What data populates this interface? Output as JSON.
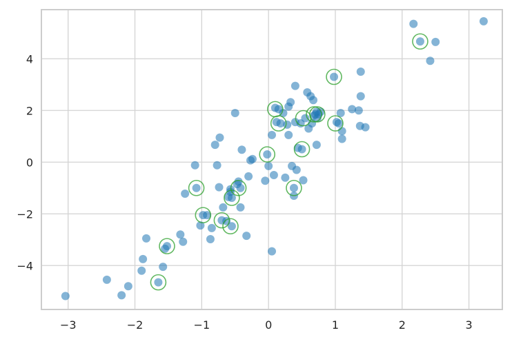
{
  "chart_data": {
    "type": "scatter",
    "title": "",
    "xlabel": "",
    "ylabel": "",
    "xlim": [
      -3.4,
      3.5
    ],
    "ylim": [
      -5.7,
      5.9
    ],
    "xticks": [
      -3,
      -2,
      -1,
      0,
      1,
      2,
      3
    ],
    "yticks": [
      -4,
      -2,
      0,
      2,
      4
    ],
    "grid": true,
    "legend": "none",
    "colors": {
      "points": "#1f77b4",
      "highlight": "#2ca02c"
    },
    "series": [
      {
        "role": "points",
        "points": [
          [
            -3.04,
            -5.18
          ],
          [
            -2.42,
            -4.55
          ],
          [
            -2.2,
            -5.15
          ],
          [
            -2.1,
            -4.8
          ],
          [
            -1.9,
            -4.2
          ],
          [
            -1.88,
            -3.75
          ],
          [
            -1.83,
            -2.95
          ],
          [
            -1.65,
            -4.65
          ],
          [
            -1.58,
            -4.05
          ],
          [
            -1.55,
            -3.35
          ],
          [
            -1.52,
            -3.25
          ],
          [
            -1.32,
            -2.8
          ],
          [
            -1.28,
            -3.08
          ],
          [
            -1.25,
            -1.22
          ],
          [
            -1.1,
            -0.12
          ],
          [
            -1.08,
            -1.0
          ],
          [
            -1.02,
            -2.45
          ],
          [
            -0.98,
            -2.05
          ],
          [
            -0.92,
            -2.05
          ],
          [
            -0.87,
            -2.98
          ],
          [
            -0.85,
            -2.55
          ],
          [
            -0.8,
            0.67
          ],
          [
            -0.77,
            -0.12
          ],
          [
            -0.74,
            -0.97
          ],
          [
            -0.73,
            0.95
          ],
          [
            -0.7,
            -2.25
          ],
          [
            -0.68,
            -1.75
          ],
          [
            -0.63,
            -2.28
          ],
          [
            -0.6,
            -1.35
          ],
          [
            -0.57,
            -1.05
          ],
          [
            -0.57,
            -1.15
          ],
          [
            -0.55,
            -1.38
          ],
          [
            -0.55,
            -2.48
          ],
          [
            -0.5,
            1.9
          ],
          [
            -0.47,
            -0.85
          ],
          [
            -0.45,
            -0.75
          ],
          [
            -0.42,
            -1.0
          ],
          [
            -0.42,
            -1.75
          ],
          [
            -0.4,
            0.48
          ],
          [
            -0.33,
            -2.85
          ],
          [
            -0.3,
            -0.55
          ],
          [
            -0.27,
            0.07
          ],
          [
            -0.24,
            0.12
          ],
          [
            -0.05,
            -0.72
          ],
          [
            -0.02,
            0.3
          ],
          [
            0.0,
            -0.15
          ],
          [
            0.05,
            -3.45
          ],
          [
            0.05,
            1.05
          ],
          [
            0.08,
            -0.5
          ],
          [
            0.1,
            2.1
          ],
          [
            0.12,
            1.55
          ],
          [
            0.15,
            2.05
          ],
          [
            0.18,
            1.5
          ],
          [
            0.22,
            1.9
          ],
          [
            0.25,
            -0.6
          ],
          [
            0.28,
            1.45
          ],
          [
            0.3,
            1.05
          ],
          [
            0.3,
            2.15
          ],
          [
            0.33,
            2.32
          ],
          [
            0.35,
            -0.15
          ],
          [
            0.38,
            -1.0
          ],
          [
            0.38,
            -1.3
          ],
          [
            0.4,
            1.55
          ],
          [
            0.4,
            2.95
          ],
          [
            0.42,
            -0.3
          ],
          [
            0.44,
            0.55
          ],
          [
            0.48,
            1.5
          ],
          [
            0.5,
            0.5
          ],
          [
            0.52,
            -0.7
          ],
          [
            0.55,
            1.7
          ],
          [
            0.58,
            2.7
          ],
          [
            0.6,
            1.3
          ],
          [
            0.63,
            2.55
          ],
          [
            0.65,
            1.5
          ],
          [
            0.67,
            2.4
          ],
          [
            0.68,
            1.8
          ],
          [
            0.7,
            1.85
          ],
          [
            0.72,
            0.67
          ],
          [
            0.72,
            1.95
          ],
          [
            0.73,
            1.7
          ],
          [
            0.75,
            1.85
          ],
          [
            0.78,
            1.95
          ],
          [
            0.98,
            3.3
          ],
          [
            1.02,
            1.55
          ],
          [
            1.05,
            1.5
          ],
          [
            1.08,
            1.9
          ],
          [
            1.1,
            1.2
          ],
          [
            1.1,
            0.9
          ],
          [
            1.25,
            2.05
          ],
          [
            1.35,
            2.0
          ],
          [
            1.37,
            1.4
          ],
          [
            1.38,
            2.55
          ],
          [
            1.38,
            3.5
          ],
          [
            1.45,
            1.35
          ],
          [
            2.17,
            5.35
          ],
          [
            2.27,
            4.67
          ],
          [
            2.42,
            3.92
          ],
          [
            2.5,
            4.65
          ],
          [
            3.22,
            5.45
          ]
        ]
      },
      {
        "role": "highlight",
        "points": [
          [
            -1.65,
            -4.65
          ],
          [
            -1.52,
            -3.25
          ],
          [
            -1.08,
            -1.0
          ],
          [
            -0.98,
            -2.05
          ],
          [
            -0.7,
            -2.25
          ],
          [
            -0.57,
            -2.48
          ],
          [
            -0.55,
            -1.38
          ],
          [
            -0.45,
            -1.0
          ],
          [
            -0.02,
            0.3
          ],
          [
            0.1,
            2.05
          ],
          [
            0.15,
            1.5
          ],
          [
            0.38,
            -1.0
          ],
          [
            0.5,
            0.5
          ],
          [
            0.52,
            1.7
          ],
          [
            0.68,
            1.85
          ],
          [
            0.73,
            1.85
          ],
          [
            0.98,
            3.3
          ],
          [
            1.0,
            1.5
          ],
          [
            2.27,
            4.67
          ]
        ]
      }
    ]
  }
}
